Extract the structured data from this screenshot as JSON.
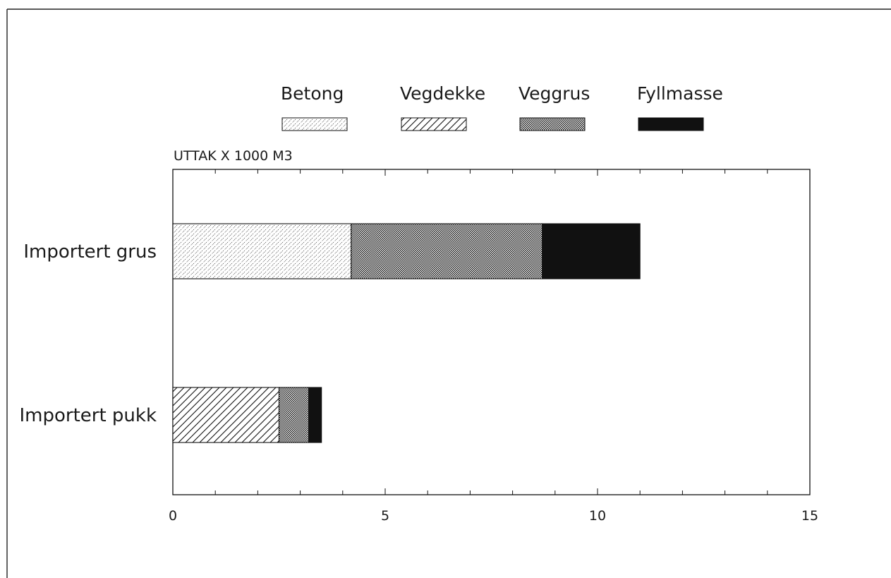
{
  "chart_data": {
    "type": "bar",
    "orientation": "horizontal",
    "stacked": true,
    "title": "",
    "xlabel": "",
    "ylabel": "UTTAK X 1000 M3",
    "categories": [
      "Importert grus",
      "Importert pukk"
    ],
    "xlim": [
      0,
      15
    ],
    "x_ticks": [
      0,
      5,
      10,
      15
    ],
    "grid": false,
    "legend_position": "top",
    "series": [
      {
        "name": "Betong",
        "pattern": "dotted-hatch",
        "values": [
          4.2,
          0
        ]
      },
      {
        "name": "Vegdekke",
        "pattern": "diagonal-hatch",
        "values": [
          0,
          2.5
        ]
      },
      {
        "name": "Veggrus",
        "pattern": "checker",
        "values": [
          4.5,
          0.7
        ]
      },
      {
        "name": "Fyllmasse",
        "pattern": "solid",
        "values": [
          2.3,
          0.3
        ]
      }
    ]
  },
  "colors": {
    "ink": "#111111",
    "background": "#ffffff"
  }
}
